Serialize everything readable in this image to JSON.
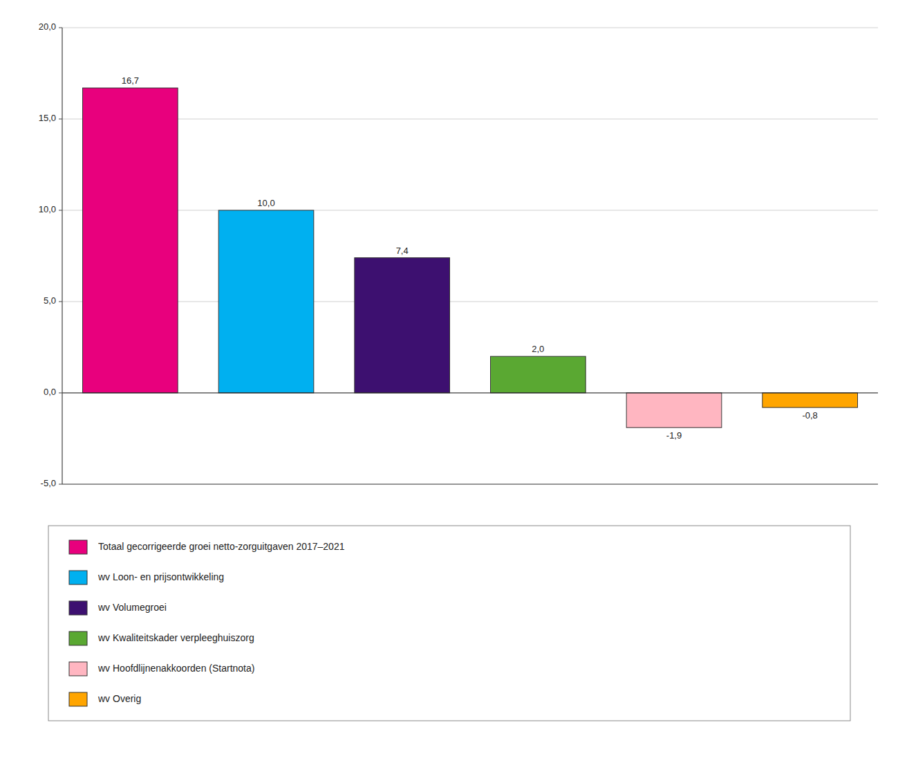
{
  "chart_data": {
    "type": "bar",
    "categories": [
      "Totaal gecorrigeerde groei netto-zorguitgaven 2017–2021",
      "wv Loon- en prijsontwikkeling",
      "wv Volumegroei",
      "wv Kwaliteitskader verpleeghuiszorg",
      "wv Hoofdlijnenakkoorden (Startnota)",
      "wv Overig"
    ],
    "values": [
      16.7,
      10.0,
      7.4,
      2.0,
      -1.9,
      -0.8
    ],
    "value_labels": [
      "16,7",
      "10,0",
      "7,4",
      "2,0",
      "-1,9",
      "-0,8"
    ],
    "colors": [
      "#E8007D",
      "#00B0F0",
      "#3D1070",
      "#5AA832",
      "#FFB6C1",
      "#FFA500"
    ],
    "ylim": [
      -5.0,
      20.0
    ],
    "yticks": [
      {
        "value": -5.0,
        "label": "-5,0"
      },
      {
        "value": 0.0,
        "label": "0,0"
      },
      {
        "value": 5.0,
        "label": "5,0"
      },
      {
        "value": 10.0,
        "label": "10,0"
      },
      {
        "value": 15.0,
        "label": "15,0"
      },
      {
        "value": 20.0,
        "label": "20,0"
      }
    ],
    "grid": true,
    "data_labels": true,
    "tick_labels": "y",
    "legend": "bottom"
  }
}
